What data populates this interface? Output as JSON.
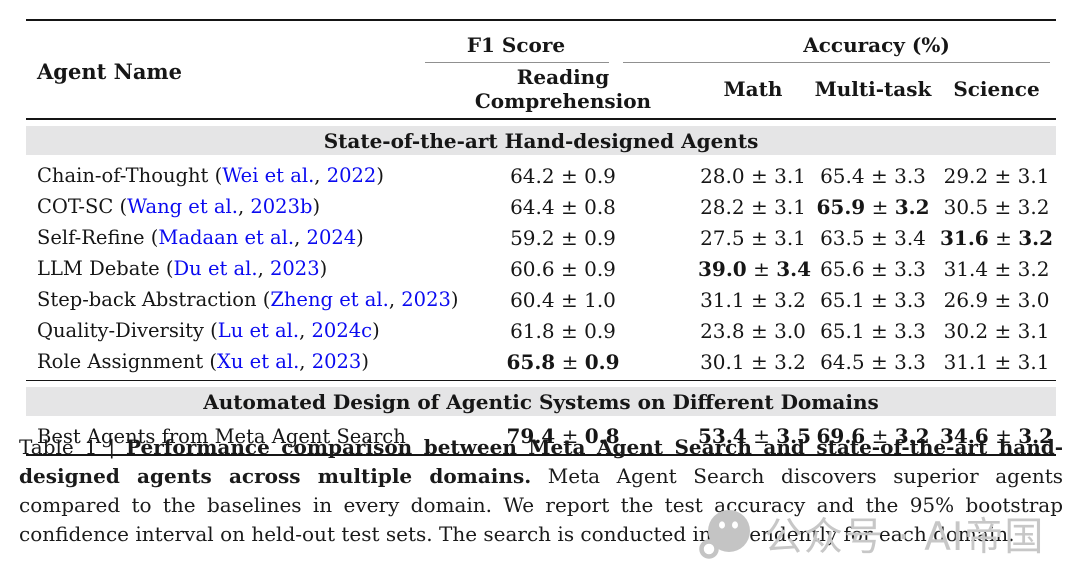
{
  "colors": {
    "link_blue": "#0a0af0",
    "band_gray": "#e5e5e6",
    "watermark_gray": "#c7c7c7"
  },
  "table": {
    "header": {
      "agent_name": "Agent Name",
      "f1_group": "F1 Score",
      "accuracy_group": "Accuracy (%)",
      "subheaders": [
        "Reading Comprehension",
        "Math",
        "Multi-task",
        "Science"
      ]
    },
    "sections": [
      {
        "title": "State-of-the-art Hand-designed Agents",
        "rows": [
          {
            "name": "Chain-of-Thought",
            "cite": {
              "authors": "Wei et al.",
              "year": "2022"
            },
            "values": [
              {
                "mean": "64.2",
                "err": "0.9",
                "bold": false
              },
              {
                "mean": "28.0",
                "err": "3.1",
                "bold": false
              },
              {
                "mean": "65.4",
                "err": "3.3",
                "bold": false
              },
              {
                "mean": "29.2",
                "err": "3.1",
                "bold": false
              }
            ]
          },
          {
            "name": "COT-SC",
            "cite": {
              "authors": "Wang et al.",
              "year": "2023b"
            },
            "values": [
              {
                "mean": "64.4",
                "err": "0.8",
                "bold": false
              },
              {
                "mean": "28.2",
                "err": "3.1",
                "bold": false
              },
              {
                "mean": "65.9",
                "err": "3.2",
                "bold": true
              },
              {
                "mean": "30.5",
                "err": "3.2",
                "bold": false
              }
            ]
          },
          {
            "name": "Self-Refine",
            "cite": {
              "authors": "Madaan et al.",
              "year": "2024"
            },
            "values": [
              {
                "mean": "59.2",
                "err": "0.9",
                "bold": false
              },
              {
                "mean": "27.5",
                "err": "3.1",
                "bold": false
              },
              {
                "mean": "63.5",
                "err": "3.4",
                "bold": false
              },
              {
                "mean": "31.6",
                "err": "3.2",
                "bold": true
              }
            ]
          },
          {
            "name": "LLM Debate",
            "cite": {
              "authors": "Du et al.",
              "year": "2023"
            },
            "values": [
              {
                "mean": "60.6",
                "err": "0.9",
                "bold": false
              },
              {
                "mean": "39.0",
                "err": "3.4",
                "bold": true
              },
              {
                "mean": "65.6",
                "err": "3.3",
                "bold": false
              },
              {
                "mean": "31.4",
                "err": "3.2",
                "bold": false
              }
            ]
          },
          {
            "name": "Step-back Abstraction",
            "cite": {
              "authors": "Zheng et al.",
              "year": "2023"
            },
            "values": [
              {
                "mean": "60.4",
                "err": "1.0",
                "bold": false
              },
              {
                "mean": "31.1",
                "err": "3.2",
                "bold": false
              },
              {
                "mean": "65.1",
                "err": "3.3",
                "bold": false
              },
              {
                "mean": "26.9",
                "err": "3.0",
                "bold": false
              }
            ]
          },
          {
            "name": "Quality-Diversity",
            "cite": {
              "authors": "Lu et al.",
              "year": "2024c"
            },
            "values": [
              {
                "mean": "61.8",
                "err": "0.9",
                "bold": false
              },
              {
                "mean": "23.8",
                "err": "3.0",
                "bold": false
              },
              {
                "mean": "65.1",
                "err": "3.3",
                "bold": false
              },
              {
                "mean": "30.2",
                "err": "3.1",
                "bold": false
              }
            ]
          },
          {
            "name": "Role Assignment",
            "cite": {
              "authors": "Xu et al.",
              "year": "2023"
            },
            "values": [
              {
                "mean": "65.8",
                "err": "0.9",
                "bold": true
              },
              {
                "mean": "30.1",
                "err": "3.2",
                "bold": false
              },
              {
                "mean": "64.5",
                "err": "3.3",
                "bold": false
              },
              {
                "mean": "31.1",
                "err": "3.1",
                "bold": false
              }
            ]
          }
        ]
      },
      {
        "title": "Automated Design of Agentic Systems on Different Domains",
        "rows": [
          {
            "name": "Best Agents from Meta Agent Search",
            "cite": null,
            "values": [
              {
                "mean": "79.4",
                "err": "0.8",
                "bold": true
              },
              {
                "mean": "53.4",
                "err": "3.5",
                "bold": true
              },
              {
                "mean": "69.6",
                "err": "3.2",
                "bold": true
              },
              {
                "mean": "34.6",
                "err": "3.2",
                "bold": true
              }
            ]
          }
        ]
      }
    ],
    "plus_minus": " ± "
  },
  "caption": {
    "label": "Table 1",
    "separator": "|",
    "bold": "Performance comparison between Meta Agent Search and state-of-the-art hand-designed agents across multiple domains.",
    "rest": "Meta Agent Search discovers superior agents compared to the baselines in every domain. We report the test accuracy and the 95% bootstrap confidence interval on held-out test sets. The search is conducted independently for each domain."
  },
  "watermark": {
    "icon": "wechat-icon",
    "text": "公众号 · AI帝国"
  }
}
